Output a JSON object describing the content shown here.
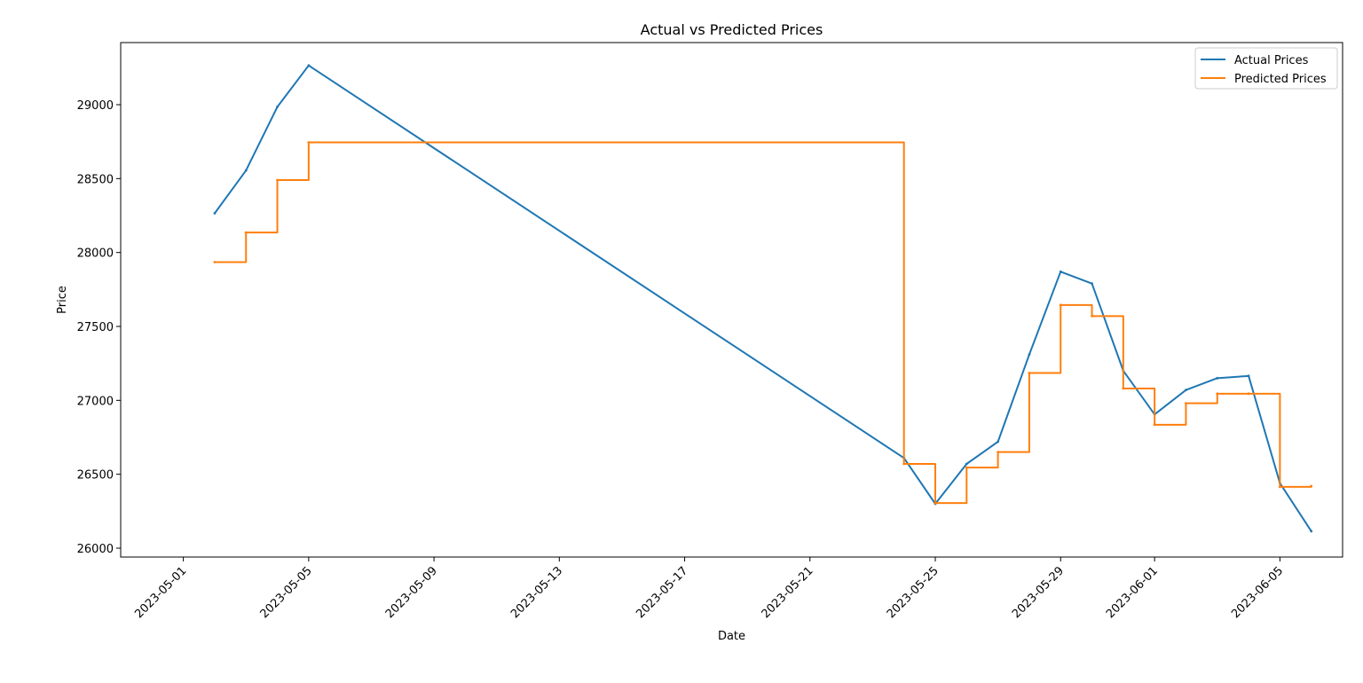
{
  "chart_data": {
    "type": "line",
    "title": "Actual vs Predicted Prices",
    "xlabel": "Date",
    "ylabel": "Price",
    "xlim": [
      "2023-04-29",
      "2023-06-07"
    ],
    "ylim": [
      25940,
      29420
    ],
    "x_ticks": [
      "2023-05-01",
      "2023-05-05",
      "2023-05-09",
      "2023-05-13",
      "2023-05-17",
      "2023-05-21",
      "2023-05-25",
      "2023-05-29",
      "2023-06-01",
      "2023-06-05"
    ],
    "y_ticks": [
      26000,
      26500,
      27000,
      27500,
      28000,
      28500,
      29000
    ],
    "grid": false,
    "legend_position": "top-right",
    "series": [
      {
        "name": "Actual Prices",
        "color": "#1f77b4",
        "style": "line",
        "x": [
          "2023-05-02",
          "2023-05-03",
          "2023-05-04",
          "2023-05-05",
          "2023-05-24",
          "2023-05-25",
          "2023-05-26",
          "2023-05-27",
          "2023-05-28",
          "2023-05-29",
          "2023-05-30",
          "2023-05-31",
          "2023-06-01",
          "2023-06-02",
          "2023-06-03",
          "2023-06-04",
          "2023-06-05",
          "2023-06-06"
        ],
        "values": [
          28265,
          28555,
          28985,
          29265,
          26610,
          26300,
          26570,
          26720,
          27310,
          27870,
          27790,
          27200,
          26905,
          27070,
          27150,
          27165,
          26440,
          26115
        ]
      },
      {
        "name": "Predicted Prices",
        "color": "#ff7f0e",
        "style": "step",
        "x": [
          "2023-05-02",
          "2023-05-03",
          "2023-05-04",
          "2023-05-05",
          "2023-05-24",
          "2023-05-25",
          "2023-05-26",
          "2023-05-27",
          "2023-05-28",
          "2023-05-29",
          "2023-05-30",
          "2023-05-31",
          "2023-06-01",
          "2023-06-02",
          "2023-06-03",
          "2023-06-04",
          "2023-06-05",
          "2023-06-06"
        ],
        "values": [
          27935,
          28135,
          28490,
          28745,
          26570,
          26305,
          26545,
          26650,
          27185,
          27645,
          27570,
          27080,
          26835,
          26980,
          27045,
          27045,
          26415,
          26420
        ]
      }
    ]
  }
}
